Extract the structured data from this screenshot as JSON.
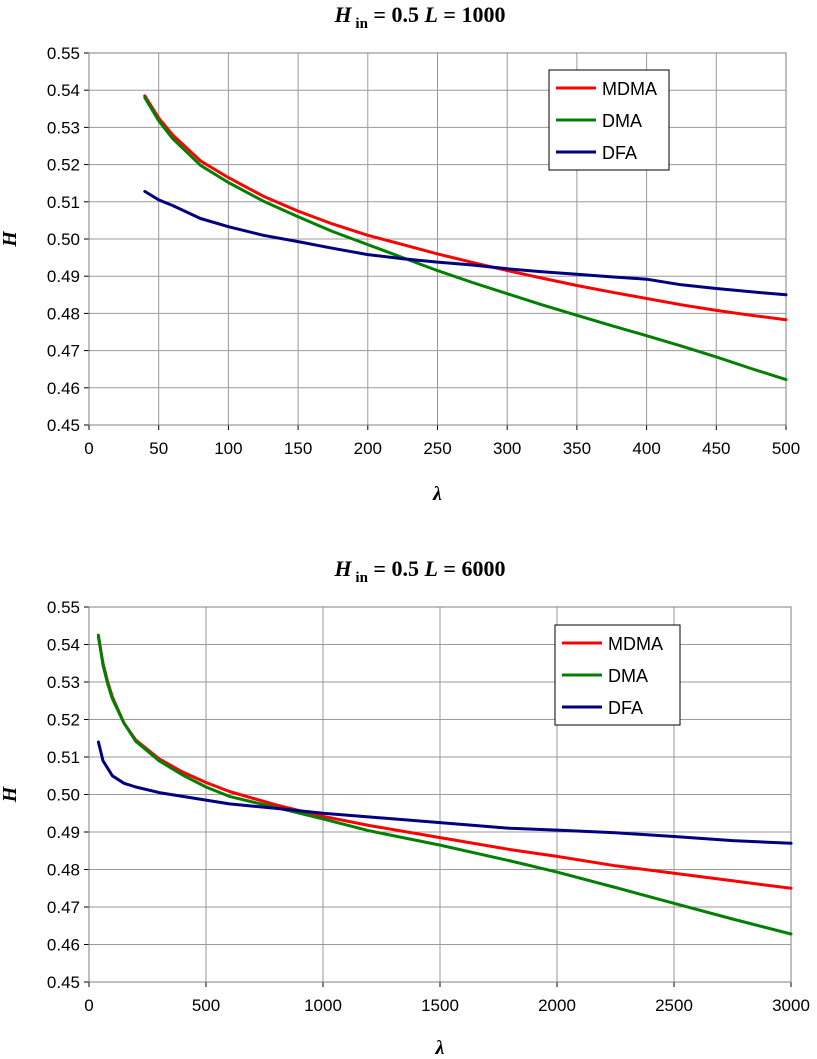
{
  "chart_data": [
    {
      "type": "line",
      "title": {
        "prefix": "H",
        "sub": "in",
        "mid": " = 0.5   ",
        "L": "L",
        "tail": " = 1000"
      },
      "xlabel": "λ",
      "ylabel": "H",
      "xlim": [
        0,
        500
      ],
      "ylim": [
        0.45,
        0.55
      ],
      "xticks": [
        "0",
        "50",
        "100",
        "150",
        "200",
        "250",
        "300",
        "350",
        "400",
        "450",
        "500"
      ],
      "yticks": [
        "0.45",
        "0.46",
        "0.47",
        "0.48",
        "0.49",
        "0.50",
        "0.51",
        "0.52",
        "0.53",
        "0.54",
        "0.55"
      ],
      "legend_position": "top-right",
      "series": [
        {
          "name": "MDMA",
          "color": "#ff0000",
          "x": [
            40,
            50,
            60,
            80,
            100,
            125,
            150,
            175,
            200,
            225,
            250,
            275,
            300,
            325,
            350,
            375,
            400,
            425,
            450,
            475,
            500
          ],
          "y": [
            0.5385,
            0.5325,
            0.528,
            0.521,
            0.5165,
            0.5115,
            0.5075,
            0.504,
            0.501,
            0.4985,
            0.496,
            0.4937,
            0.4915,
            0.4895,
            0.4875,
            0.4857,
            0.484,
            0.4823,
            0.4808,
            0.4795,
            0.4783
          ]
        },
        {
          "name": "DMA",
          "color": "#008000",
          "x": [
            40,
            50,
            60,
            80,
            100,
            125,
            150,
            175,
            200,
            225,
            250,
            275,
            300,
            325,
            350,
            375,
            400,
            425,
            450,
            475,
            500
          ],
          "y": [
            0.538,
            0.5318,
            0.527,
            0.5198,
            0.5152,
            0.5102,
            0.506,
            0.502,
            0.4985,
            0.495,
            0.4915,
            0.4883,
            0.4853,
            0.4823,
            0.4795,
            0.4767,
            0.474,
            0.4712,
            0.4683,
            0.4652,
            0.4622
          ]
        },
        {
          "name": "DFA",
          "color": "#000080",
          "x": [
            40,
            50,
            60,
            80,
            100,
            125,
            150,
            175,
            200,
            225,
            250,
            275,
            300,
            325,
            350,
            375,
            400,
            425,
            450,
            475,
            500
          ],
          "y": [
            0.5128,
            0.5105,
            0.509,
            0.5055,
            0.5033,
            0.501,
            0.4993,
            0.4975,
            0.4958,
            0.4947,
            0.4938,
            0.493,
            0.492,
            0.4912,
            0.4905,
            0.4898,
            0.4892,
            0.4877,
            0.4867,
            0.4858,
            0.485
          ]
        }
      ]
    },
    {
      "type": "line",
      "title": {
        "prefix": "H",
        "sub": "in",
        "mid": " = 0.5  ",
        "L": "L",
        "tail": " = 6000"
      },
      "xlabel": "λ",
      "ylabel": "H",
      "xlim": [
        0,
        3000
      ],
      "ylim": [
        0.45,
        0.55
      ],
      "xticks": [
        "0",
        "500",
        "1000",
        "1500",
        "2000",
        "2500",
        "3000"
      ],
      "yticks": [
        "0.45",
        "0.46",
        "0.47",
        "0.48",
        "0.49",
        "0.50",
        "0.51",
        "0.52",
        "0.53",
        "0.54",
        "0.55"
      ],
      "legend_position": "top-right",
      "series": [
        {
          "name": "MDMA",
          "color": "#ff0000",
          "x": [
            40,
            60,
            80,
            100,
            150,
            200,
            300,
            400,
            500,
            600,
            800,
            1000,
            1200,
            1500,
            1800,
            2000,
            2250,
            2500,
            2750,
            3000
          ],
          "y": [
            0.542,
            0.535,
            0.53,
            0.526,
            0.519,
            0.5145,
            0.5095,
            0.506,
            0.5032,
            0.5008,
            0.4972,
            0.4942,
            0.4917,
            0.4885,
            0.4853,
            0.4835,
            0.481,
            0.479,
            0.477,
            0.475
          ]
        },
        {
          "name": "DMA",
          "color": "#008000",
          "x": [
            40,
            60,
            80,
            100,
            150,
            200,
            300,
            400,
            500,
            600,
            800,
            1000,
            1200,
            1500,
            1800,
            2000,
            2250,
            2500,
            2750,
            3000
          ],
          "y": [
            0.5425,
            0.5345,
            0.5295,
            0.5255,
            0.519,
            0.5142,
            0.509,
            0.5052,
            0.502,
            0.4995,
            0.4965,
            0.4935,
            0.4903,
            0.4865,
            0.4823,
            0.4793,
            0.4752,
            0.471,
            0.4668,
            0.4628
          ]
        },
        {
          "name": "DFA",
          "color": "#000080",
          "x": [
            40,
            60,
            80,
            100,
            150,
            200,
            300,
            400,
            500,
            600,
            800,
            1000,
            1200,
            1500,
            1800,
            2000,
            2250,
            2500,
            2750,
            3000
          ],
          "y": [
            0.514,
            0.509,
            0.507,
            0.505,
            0.503,
            0.502,
            0.5005,
            0.4995,
            0.4985,
            0.4975,
            0.4963,
            0.495,
            0.494,
            0.4925,
            0.491,
            0.4905,
            0.4898,
            0.4888,
            0.4877,
            0.487
          ]
        }
      ]
    }
  ]
}
